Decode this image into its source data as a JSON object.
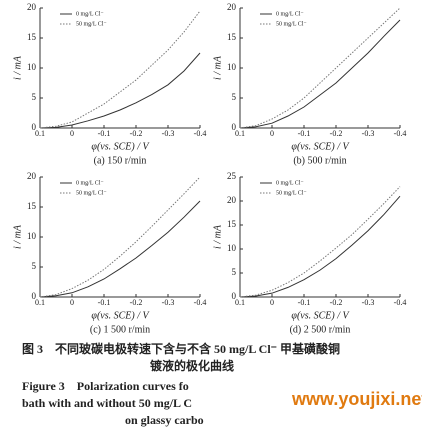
{
  "chart_data": [
    {
      "type": "line",
      "panel_label": "(a) 150 r/min",
      "xlabel": "φ(vs. SCE) / V",
      "ylabel": "i / mA",
      "x": [
        0.1,
        0.05,
        0,
        -0.05,
        -0.1,
        -0.15,
        -0.2,
        -0.25,
        -0.3,
        -0.35,
        -0.4
      ],
      "xlim": [
        0.1,
        -0.4
      ],
      "xticks": [
        0.1,
        0,
        -0.1,
        -0.2,
        -0.3,
        -0.4
      ],
      "ylim": [
        0,
        20
      ],
      "yticks": [
        0,
        5,
        10,
        15,
        20
      ],
      "series": [
        {
          "name": "0 mg/L Cl⁻",
          "color": "#333333",
          "style": "solid",
          "values": [
            0,
            0.1,
            0.5,
            1.2,
            2,
            3,
            4.2,
            5.6,
            7.2,
            9.5,
            12.5
          ]
        },
        {
          "name": "50 mg/L Cl⁻",
          "color": "#777777",
          "style": "dotted",
          "values": [
            0,
            0.3,
            1,
            2.5,
            4,
            6,
            8,
            10.5,
            13,
            16,
            19.5
          ]
        }
      ]
    },
    {
      "type": "line",
      "panel_label": "(b) 500 r/min",
      "xlabel": "φ(vs. SCE) / V",
      "ylabel": "i / mA",
      "x": [
        0.1,
        0.05,
        0,
        -0.05,
        -0.1,
        -0.15,
        -0.2,
        -0.25,
        -0.3,
        -0.35,
        -0.4
      ],
      "xlim": [
        0.1,
        -0.4
      ],
      "xticks": [
        0.1,
        0,
        -0.1,
        -0.2,
        -0.3,
        -0.4
      ],
      "ylim": [
        0,
        20
      ],
      "yticks": [
        0,
        5,
        10,
        15,
        20
      ],
      "series": [
        {
          "name": "0 mg/L Cl⁻",
          "color": "#333333",
          "style": "solid",
          "values": [
            0,
            0.2,
            0.8,
            2,
            3.5,
            5.5,
            7.5,
            10,
            12.5,
            15.3,
            18
          ]
        },
        {
          "name": "50 mg/L Cl⁻",
          "color": "#777777",
          "style": "dotted",
          "values": [
            0,
            0.4,
            1.5,
            3,
            5,
            7.5,
            10,
            12.5,
            15,
            17.5,
            20
          ]
        }
      ]
    },
    {
      "type": "line",
      "panel_label": "(c) 1 500 r/min",
      "xlabel": "φ(vs. SCE) / V",
      "ylabel": "i / mA",
      "x": [
        0.1,
        0.05,
        0,
        -0.05,
        -0.1,
        -0.15,
        -0.2,
        -0.25,
        -0.3,
        -0.35,
        -0.4
      ],
      "xlim": [
        0.1,
        -0.4
      ],
      "xticks": [
        0.1,
        0,
        -0.1,
        -0.2,
        -0.3,
        -0.4
      ],
      "ylim": [
        0,
        20
      ],
      "yticks": [
        0,
        5,
        10,
        15,
        20
      ],
      "series": [
        {
          "name": "0 mg/L Cl⁻",
          "color": "#333333",
          "style": "solid",
          "values": [
            0,
            0.2,
            0.7,
            1.7,
            3,
            4.7,
            6.5,
            8.6,
            10.8,
            13.3,
            16
          ]
        },
        {
          "name": "50 mg/L Cl⁻",
          "color": "#777777",
          "style": "dotted",
          "values": [
            0,
            0.4,
            1.4,
            2.8,
            4.6,
            6.8,
            9.2,
            11.8,
            14.5,
            17.2,
            20
          ]
        }
      ]
    },
    {
      "type": "line",
      "panel_label": "(d) 2 500 r/min",
      "xlabel": "φ(vs. SCE) / V",
      "ylabel": "i / mA",
      "x": [
        0.1,
        0.05,
        0,
        -0.05,
        -0.1,
        -0.15,
        -0.2,
        -0.25,
        -0.3,
        -0.35,
        -0.4
      ],
      "xlim": [
        0.1,
        -0.4
      ],
      "xticks": [
        0.1,
        0,
        -0.1,
        -0.2,
        -0.3,
        -0.4
      ],
      "ylim": [
        0,
        25
      ],
      "yticks": [
        0,
        5,
        10,
        15,
        20,
        25
      ],
      "series": [
        {
          "name": "0 mg/L Cl⁻",
          "color": "#333333",
          "style": "solid",
          "values": [
            0,
            0.2,
            0.8,
            2,
            3.6,
            5.6,
            8,
            10.8,
            13.8,
            17.2,
            21
          ]
        },
        {
          "name": "50 mg/L Cl⁻",
          "color": "#777777",
          "style": "dotted",
          "values": [
            0,
            0.4,
            1.4,
            3,
            5,
            7.5,
            10.2,
            13,
            16.2,
            19.5,
            23
          ]
        }
      ]
    }
  ],
  "caption": {
    "cn_line1": "图 3　不同玻碳电极转速下含与不含 50 mg/L Cl⁻ 甲基磺酸铜",
    "cn_line2": "镀液的极化曲线",
    "en_line1": "Figure 3　Polarization curves fo",
    "en_line2": "bath with and without 50 mg/L C",
    "en_line3": "on glassy carbo"
  },
  "watermark": "www.youjixi.net"
}
